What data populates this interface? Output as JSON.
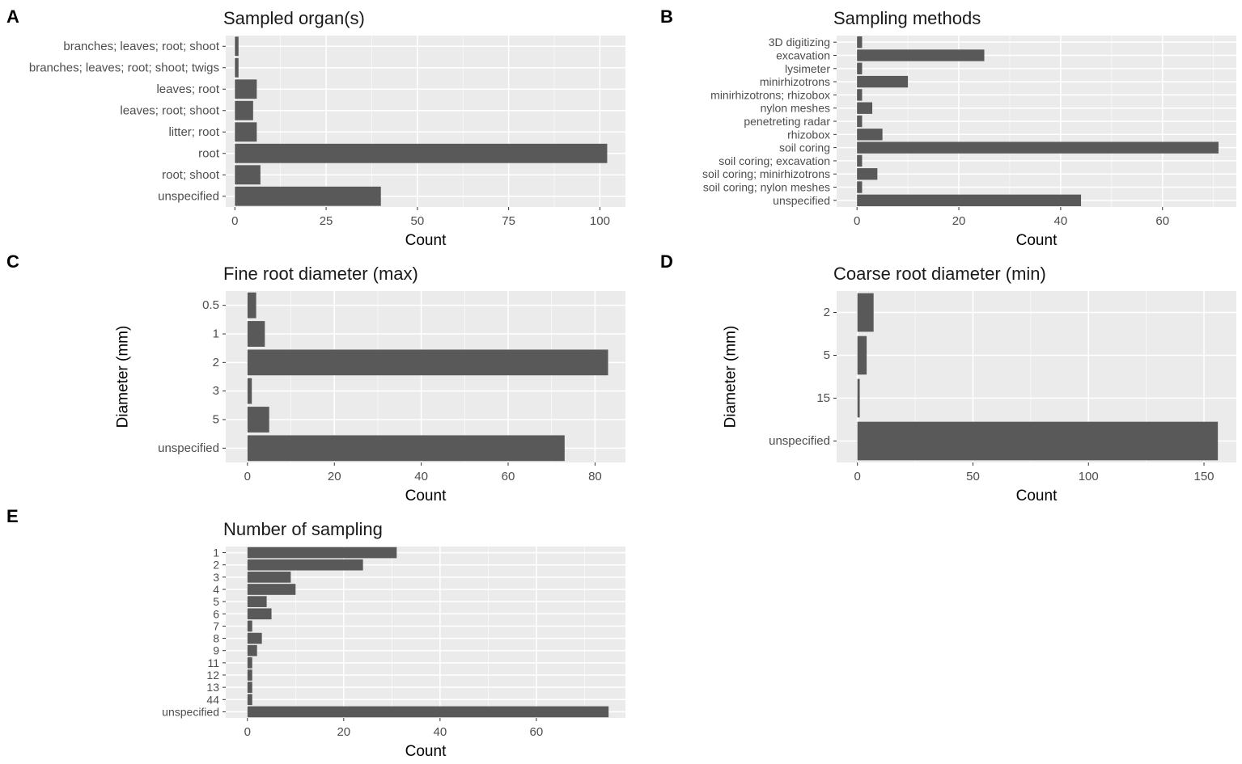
{
  "chart_data": [
    {
      "letter": "A",
      "type": "bar",
      "orientation": "horizontal",
      "title": "Sampled organ(s)",
      "xlabel": "Count",
      "ylabel": "",
      "categories": [
        "branches; leaves; root; shoot",
        "branches; leaves; root; shoot; twigs",
        "leaves; root",
        "leaves; root; shoot",
        "litter; root",
        "root",
        "root; shoot",
        "unspecified"
      ],
      "values": [
        1,
        1,
        6,
        5,
        6,
        102,
        7,
        40
      ],
      "xlim": [
        -2.5,
        107
      ],
      "xticks": [
        0,
        25,
        50,
        75,
        100
      ],
      "grid": true
    },
    {
      "letter": "B",
      "type": "bar",
      "orientation": "horizontal",
      "title": "Sampling methods",
      "xlabel": "Count",
      "ylabel": "",
      "categories": [
        "3D digitizing",
        "excavation",
        "lysimeter",
        "minirhizotrons",
        "minirhizotrons; rhizobox",
        "nylon meshes",
        "penetreting radar",
        "rhizobox",
        "soil coring",
        "soil coring; excavation",
        "soil coring; minirhizotrons",
        "soil coring; nylon meshes",
        "unspecified"
      ],
      "values": [
        1,
        25,
        1,
        10,
        1,
        3,
        1,
        5,
        71,
        1,
        4,
        1,
        44
      ],
      "xlim": [
        -4,
        74.5
      ],
      "xticks": [
        0,
        20,
        40,
        60
      ],
      "grid": true
    },
    {
      "letter": "C",
      "type": "bar",
      "orientation": "horizontal",
      "title": "Fine root diameter (max)",
      "xlabel": "Count",
      "ylabel": "Diameter (mm)",
      "categories": [
        "0.5",
        "1",
        "2",
        "3",
        "5",
        "unspecified"
      ],
      "values": [
        2,
        4,
        83,
        1,
        5,
        73
      ],
      "xlim": [
        -5,
        87
      ],
      "xticks": [
        0,
        20,
        40,
        60,
        80
      ],
      "grid": true
    },
    {
      "letter": "D",
      "type": "bar",
      "orientation": "horizontal",
      "title": "Coarse root diameter (min)",
      "xlabel": "Count",
      "ylabel": "Diameter (mm)",
      "categories": [
        "2",
        "5",
        "15",
        "unspecified"
      ],
      "values": [
        7,
        4,
        1,
        156
      ],
      "xlim": [
        -9,
        164
      ],
      "xticks": [
        0,
        50,
        100,
        150
      ],
      "grid": true
    },
    {
      "letter": "E",
      "type": "bar",
      "orientation": "horizontal",
      "title": "Number of sampling",
      "xlabel": "Count",
      "ylabel": "",
      "categories": [
        "1",
        "2",
        "3",
        "4",
        "5",
        "6",
        "7",
        "8",
        "9",
        "11",
        "12",
        "13",
        "44",
        "unspecified"
      ],
      "values": [
        31,
        24,
        9,
        10,
        4,
        5,
        1,
        3,
        2,
        1,
        1,
        1,
        1,
        75
      ],
      "xlim": [
        -4.5,
        78.5
      ],
      "xticks": [
        0,
        20,
        40,
        60
      ],
      "grid": true
    }
  ],
  "style": {
    "panel_background": "#ebebeb",
    "grid_major": "#ffffff",
    "bar_fill": "#595959",
    "text_color": "#4d4d4d"
  }
}
